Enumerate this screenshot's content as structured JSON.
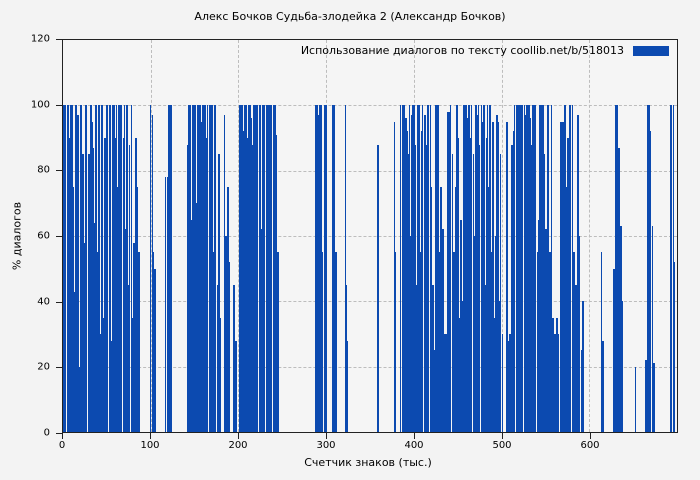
{
  "title": "Алекс Бочков Судьба-злодейка 2 (Александр Бочков)",
  "legend": {
    "label": "Использование диалогов по тексту  coollib.net/b/518013",
    "swatch_color": "#0c4ab0"
  },
  "axes": {
    "ylabel": "% диалогов",
    "xlabel": "Счетчик знаков (тыс.)"
  },
  "colors": {
    "background": "#f3f3f3",
    "bar": "#0c4ab0",
    "grid": "#bdbdbd",
    "spine": "#222222",
    "text": "#000000"
  },
  "chart_data": {
    "type": "bar",
    "title": "Алекс Бочков Судьба-злодейка 2 (Александр Бочков)",
    "xlabel": "Счетчик знаков (тыс.)",
    "ylabel": "% диалогов",
    "xlim": [
      0,
      700
    ],
    "ylim": [
      0,
      120
    ],
    "xticks": [
      0,
      100,
      200,
      300,
      400,
      500,
      600
    ],
    "yticks": [
      0,
      20,
      40,
      60,
      80,
      100,
      120
    ],
    "grid": "dashed",
    "legend_label": "Использование диалогов по тексту  coollib.net/b/518013",
    "legend_position": "top-right-inside",
    "bar_color": "#0c4ab0",
    "points": [
      [
        0,
        100
      ],
      [
        1,
        24
      ],
      [
        2,
        100
      ],
      [
        4,
        58
      ],
      [
        5,
        100
      ],
      [
        7,
        90
      ],
      [
        8,
        100
      ],
      [
        10,
        100
      ],
      [
        11,
        75
      ],
      [
        13,
        43
      ],
      [
        14,
        100
      ],
      [
        16,
        97
      ],
      [
        17,
        20
      ],
      [
        19,
        100
      ],
      [
        20,
        100
      ],
      [
        22,
        85
      ],
      [
        23,
        58
      ],
      [
        25,
        100
      ],
      [
        26,
        100
      ],
      [
        28,
        53
      ],
      [
        29,
        85
      ],
      [
        31,
        100
      ],
      [
        32,
        95
      ],
      [
        34,
        87
      ],
      [
        35,
        64
      ],
      [
        37,
        100
      ],
      [
        38,
        55
      ],
      [
        40,
        100
      ],
      [
        41,
        30
      ],
      [
        43,
        100
      ],
      [
        44,
        100
      ],
      [
        46,
        35
      ],
      [
        47,
        90
      ],
      [
        49,
        100
      ],
      [
        50,
        60
      ],
      [
        53,
        100
      ],
      [
        54,
        28
      ],
      [
        56,
        100
      ],
      [
        57,
        100
      ],
      [
        59,
        90
      ],
      [
        60,
        100
      ],
      [
        62,
        75
      ],
      [
        63,
        100
      ],
      [
        65,
        100
      ],
      [
        66,
        55
      ],
      [
        68,
        90
      ],
      [
        69,
        100
      ],
      [
        71,
        62
      ],
      [
        72,
        100
      ],
      [
        74,
        45
      ],
      [
        75,
        88
      ],
      [
        77,
        100
      ],
      [
        78,
        35
      ],
      [
        80,
        58
      ],
      [
        82,
        90
      ],
      [
        84,
        75
      ],
      [
        86,
        55
      ],
      [
        99,
        100
      ],
      [
        101,
        97
      ],
      [
        102,
        55
      ],
      [
        104,
        50
      ],
      [
        116,
        78
      ],
      [
        118,
        78
      ],
      [
        120,
        100
      ],
      [
        122,
        100
      ],
      [
        123,
        63
      ],
      [
        141,
        88
      ],
      [
        143,
        100
      ],
      [
        144,
        100
      ],
      [
        146,
        65
      ],
      [
        147,
        100
      ],
      [
        149,
        100
      ],
      [
        150,
        100
      ],
      [
        152,
        70
      ],
      [
        153,
        100
      ],
      [
        155,
        100
      ],
      [
        157,
        95
      ],
      [
        158,
        100
      ],
      [
        160,
        100
      ],
      [
        161,
        100
      ],
      [
        163,
        90
      ],
      [
        164,
        100
      ],
      [
        166,
        68
      ],
      [
        167,
        100
      ],
      [
        169,
        100
      ],
      [
        170,
        55
      ],
      [
        172,
        100
      ],
      [
        173,
        100
      ],
      [
        175,
        45
      ],
      [
        177,
        85
      ],
      [
        178,
        35
      ],
      [
        183,
        97
      ],
      [
        185,
        60
      ],
      [
        187,
        75
      ],
      [
        189,
        52
      ],
      [
        194,
        45
      ],
      [
        196,
        28
      ],
      [
        201,
        100
      ],
      [
        203,
        100
      ],
      [
        204,
        92
      ],
      [
        206,
        100
      ],
      [
        208,
        100
      ],
      [
        209,
        90
      ],
      [
        211,
        100
      ],
      [
        213,
        100
      ],
      [
        214,
        96
      ],
      [
        216,
        88
      ],
      [
        217,
        100
      ],
      [
        219,
        100
      ],
      [
        221,
        100
      ],
      [
        223,
        100
      ],
      [
        224,
        100
      ],
      [
        226,
        62
      ],
      [
        227,
        100
      ],
      [
        229,
        100
      ],
      [
        231,
        100
      ],
      [
        232,
        100
      ],
      [
        234,
        100
      ],
      [
        236,
        100
      ],
      [
        237,
        100
      ],
      [
        239,
        100
      ],
      [
        241,
        100
      ],
      [
        242,
        91
      ],
      [
        244,
        55
      ],
      [
        287,
        100
      ],
      [
        289,
        100
      ],
      [
        290,
        97
      ],
      [
        292,
        100
      ],
      [
        294,
        100
      ],
      [
        295,
        55
      ],
      [
        298,
        100
      ],
      [
        299,
        100
      ],
      [
        307,
        100
      ],
      [
        308,
        100
      ],
      [
        310,
        55
      ],
      [
        321,
        100
      ],
      [
        322,
        45
      ],
      [
        323,
        28
      ],
      [
        358,
        88
      ],
      [
        359,
        20
      ],
      [
        377,
        95
      ],
      [
        378,
        55
      ],
      [
        384,
        100
      ],
      [
        386,
        60
      ],
      [
        387,
        100
      ],
      [
        388,
        100
      ],
      [
        390,
        96
      ],
      [
        391,
        92
      ],
      [
        393,
        85
      ],
      [
        394,
        100
      ],
      [
        396,
        60
      ],
      [
        397,
        97
      ],
      [
        398,
        100
      ],
      [
        400,
        100
      ],
      [
        401,
        88
      ],
      [
        403,
        45
      ],
      [
        404,
        100
      ],
      [
        405,
        100
      ],
      [
        407,
        55
      ],
      [
        408,
        92
      ],
      [
        409,
        100
      ],
      [
        411,
        60
      ],
      [
        412,
        97
      ],
      [
        414,
        88
      ],
      [
        415,
        100
      ],
      [
        416,
        90
      ],
      [
        418,
        100
      ],
      [
        419,
        75
      ],
      [
        421,
        45
      ],
      [
        422,
        25
      ],
      [
        424,
        100
      ],
      [
        426,
        100
      ],
      [
        427,
        100
      ],
      [
        429,
        55
      ],
      [
        430,
        75
      ],
      [
        432,
        62
      ],
      [
        434,
        30
      ],
      [
        436,
        30
      ],
      [
        438,
        98
      ],
      [
        439,
        98
      ],
      [
        441,
        100
      ],
      [
        443,
        85
      ],
      [
        445,
        55
      ],
      [
        447,
        75
      ],
      [
        448,
        100
      ],
      [
        450,
        90
      ],
      [
        451,
        35
      ],
      [
        453,
        65
      ],
      [
        455,
        40
      ],
      [
        456,
        100
      ],
      [
        458,
        100
      ],
      [
        459,
        100
      ],
      [
        461,
        96
      ],
      [
        462,
        100
      ],
      [
        464,
        90
      ],
      [
        465,
        100
      ],
      [
        467,
        85
      ],
      [
        468,
        60
      ],
      [
        470,
        100
      ],
      [
        471,
        97
      ],
      [
        473,
        100
      ],
      [
        474,
        88
      ],
      [
        476,
        100
      ],
      [
        477,
        95
      ],
      [
        479,
        100
      ],
      [
        480,
        45
      ],
      [
        482,
        90
      ],
      [
        483,
        100
      ],
      [
        485,
        75
      ],
      [
        486,
        100
      ],
      [
        488,
        55
      ],
      [
        489,
        95
      ],
      [
        491,
        35
      ],
      [
        492,
        60
      ],
      [
        494,
        97
      ],
      [
        495,
        95
      ],
      [
        497,
        40
      ],
      [
        498,
        85
      ],
      [
        500,
        30
      ],
      [
        505,
        95
      ],
      [
        507,
        28
      ],
      [
        509,
        30
      ],
      [
        511,
        88
      ],
      [
        513,
        92
      ],
      [
        514,
        100
      ],
      [
        516,
        100
      ],
      [
        517,
        100
      ],
      [
        519,
        100
      ],
      [
        520,
        100
      ],
      [
        522,
        100
      ],
      [
        523,
        100
      ],
      [
        525,
        100
      ],
      [
        526,
        97
      ],
      [
        528,
        100
      ],
      [
        529,
        100
      ],
      [
        531,
        100
      ],
      [
        532,
        96
      ],
      [
        534,
        88
      ],
      [
        535,
        100
      ],
      [
        537,
        100
      ],
      [
        538,
        80
      ],
      [
        540,
        55
      ],
      [
        541,
        65
      ],
      [
        543,
        100
      ],
      [
        545,
        100
      ],
      [
        546,
        100
      ],
      [
        548,
        85
      ],
      [
        550,
        62
      ],
      [
        552,
        100
      ],
      [
        554,
        55
      ],
      [
        556,
        100
      ],
      [
        558,
        35
      ],
      [
        560,
        30
      ],
      [
        562,
        35
      ],
      [
        564,
        30
      ],
      [
        567,
        95
      ],
      [
        569,
        95
      ],
      [
        571,
        100
      ],
      [
        572,
        100
      ],
      [
        573,
        75
      ],
      [
        575,
        90
      ],
      [
        577,
        100
      ],
      [
        580,
        100
      ],
      [
        582,
        55
      ],
      [
        584,
        45
      ],
      [
        586,
        97
      ],
      [
        588,
        60
      ],
      [
        590,
        25
      ],
      [
        592,
        40
      ],
      [
        613,
        55
      ],
      [
        615,
        28
      ],
      [
        627,
        50
      ],
      [
        629,
        100
      ],
      [
        631,
        100
      ],
      [
        633,
        87
      ],
      [
        635,
        63
      ],
      [
        637,
        40
      ],
      [
        652,
        20
      ],
      [
        664,
        22
      ],
      [
        666,
        100
      ],
      [
        667,
        100
      ],
      [
        669,
        92
      ],
      [
        671,
        63
      ],
      [
        673,
        21
      ],
      [
        692,
        100
      ],
      [
        693,
        100
      ],
      [
        695,
        100
      ],
      [
        696,
        52
      ]
    ]
  }
}
